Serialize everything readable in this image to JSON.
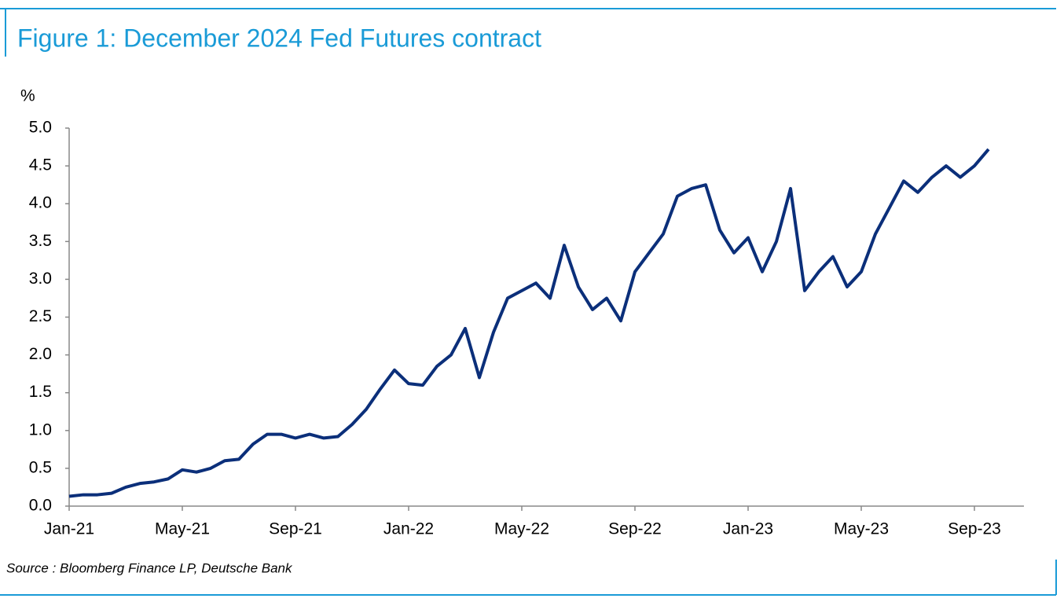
{
  "chart_data": {
    "type": "line",
    "title": "Figure 1: December 2024 Fed Futures contract",
    "y_label": "%",
    "source": "Source : Bloomberg Finance LP, Deutsche Bank",
    "categories": [
      "Jan-21",
      null,
      null,
      null,
      null,
      null,
      null,
      null,
      "May-21",
      null,
      null,
      null,
      null,
      null,
      null,
      null,
      "Sep-21",
      null,
      null,
      null,
      null,
      null,
      null,
      null,
      "Jan-22",
      null,
      null,
      null,
      null,
      null,
      null,
      null,
      "May-22",
      null,
      null,
      null,
      null,
      null,
      null,
      null,
      "Sep-22",
      null,
      null,
      null,
      null,
      null,
      null,
      null,
      "Jan-23",
      null,
      null,
      null,
      null,
      null,
      null,
      null,
      "May-23",
      null,
      null,
      null,
      null,
      null,
      null,
      null,
      "Sep-23",
      null
    ],
    "series": [
      {
        "name": "December 2024 Fed Futures",
        "color": "#0b2f7a",
        "values": [
          0.13,
          0.15,
          0.15,
          0.17,
          0.25,
          0.3,
          0.32,
          0.36,
          0.48,
          0.45,
          0.5,
          0.6,
          0.62,
          0.82,
          0.95,
          0.95,
          0.9,
          0.95,
          0.9,
          0.92,
          1.08,
          1.28,
          1.55,
          1.8,
          1.62,
          1.6,
          1.85,
          2.0,
          2.35,
          1.7,
          2.3,
          2.75,
          2.85,
          2.95,
          2.75,
          3.45,
          2.9,
          2.6,
          2.75,
          2.45,
          3.1,
          3.35,
          3.6,
          4.1,
          4.2,
          4.25,
          3.65,
          3.35,
          3.55,
          3.1,
          3.5,
          4.2,
          2.85,
          3.1,
          3.3,
          2.9,
          3.1,
          3.6,
          3.95,
          4.3,
          4.15,
          4.35,
          4.5,
          4.35,
          4.5,
          4.72
        ]
      }
    ],
    "ylim": [
      0,
      5
    ],
    "yticks": [
      {
        "value": 0,
        "label": "0.0"
      },
      0.5,
      {
        "value": 1,
        "label": "1.0"
      },
      1.5,
      {
        "value": 2,
        "label": "2.0"
      },
      2.5,
      {
        "value": 3,
        "label": "3.0"
      },
      3.5,
      {
        "value": 4,
        "label": "4.0"
      },
      4.5,
      {
        "value": 5,
        "label": "5.0"
      }
    ],
    "grid": false
  }
}
